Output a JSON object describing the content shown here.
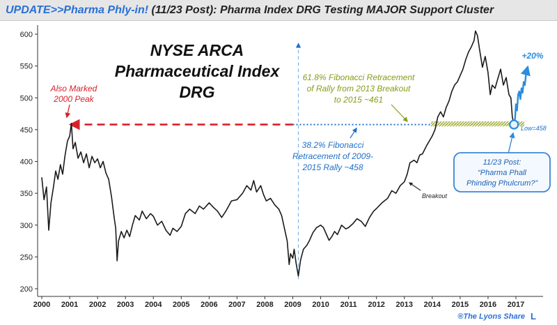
{
  "title_prefix": "UPDATE>>Pharma Phly-in!",
  "title_rest": " (11/23 Post): Pharma Index DRG Testing MAJOR Support Cluster",
  "credit": "®The Lyons Share",
  "credit_mark": "L",
  "colors": {
    "price": "#1a1a1a",
    "projection": "#2a8de0",
    "red_annotation": "#d8202a",
    "fib_618": "#8a9a18",
    "fib_382": "#1f6fc8",
    "title_blue": "#2a6fd6",
    "callout_border": "#3a86d8"
  },
  "chart_data": {
    "type": "line",
    "title": "NYSE ARCA Pharmaceutical Index DRG",
    "title_lines": [
      "NYSE ARCA",
      "Pharmaceutical Index",
      "DRG"
    ],
    "xlabel": "",
    "ylabel": "",
    "xlim": [
      2000,
      2017.5
    ],
    "ylim": [
      200,
      610
    ],
    "grid": false,
    "legend": "none",
    "x_ticks": [
      2000,
      2001,
      2002,
      2003,
      2004,
      2005,
      2006,
      2007,
      2008,
      2009,
      2010,
      2011,
      2012,
      2013,
      2014,
      2015,
      2016,
      2017
    ],
    "y_ticks": [
      200,
      250,
      300,
      350,
      400,
      450,
      500,
      550,
      600
    ],
    "series": [
      {
        "style": "price",
        "points": [
          [
            2000.0,
            375
          ],
          [
            2000.08,
            340
          ],
          [
            2000.17,
            360
          ],
          [
            2000.25,
            292
          ],
          [
            2000.33,
            335
          ],
          [
            2000.42,
            360
          ],
          [
            2000.5,
            385
          ],
          [
            2000.58,
            372
          ],
          [
            2000.67,
            395
          ],
          [
            2000.75,
            380
          ],
          [
            2000.83,
            408
          ],
          [
            2000.92,
            432
          ],
          [
            2001.0,
            440
          ],
          [
            2001.06,
            460
          ],
          [
            2001.12,
            420
          ],
          [
            2001.2,
            430
          ],
          [
            2001.3,
            405
          ],
          [
            2001.4,
            415
          ],
          [
            2001.5,
            398
          ],
          [
            2001.6,
            412
          ],
          [
            2001.7,
            390
          ],
          [
            2001.8,
            408
          ],
          [
            2001.9,
            398
          ],
          [
            2002.0,
            404
          ],
          [
            2002.1,
            390
          ],
          [
            2002.2,
            400
          ],
          [
            2002.3,
            382
          ],
          [
            2002.4,
            372
          ],
          [
            2002.5,
            345
          ],
          [
            2002.6,
            310
          ],
          [
            2002.65,
            295
          ],
          [
            2002.7,
            244
          ],
          [
            2002.75,
            275
          ],
          [
            2002.85,
            290
          ],
          [
            2002.95,
            280
          ],
          [
            2003.05,
            292
          ],
          [
            2003.15,
            282
          ],
          [
            2003.25,
            300
          ],
          [
            2003.35,
            315
          ],
          [
            2003.5,
            308
          ],
          [
            2003.6,
            322
          ],
          [
            2003.75,
            310
          ],
          [
            2003.9,
            318
          ],
          [
            2004.0,
            314
          ],
          [
            2004.15,
            300
          ],
          [
            2004.3,
            306
          ],
          [
            2004.45,
            292
          ],
          [
            2004.6,
            284
          ],
          [
            2004.7,
            295
          ],
          [
            2004.85,
            290
          ],
          [
            2005.0,
            298
          ],
          [
            2005.15,
            318
          ],
          [
            2005.3,
            325
          ],
          [
            2005.5,
            318
          ],
          [
            2005.65,
            330
          ],
          [
            2005.8,
            325
          ],
          [
            2006.0,
            335
          ],
          [
            2006.15,
            328
          ],
          [
            2006.3,
            322
          ],
          [
            2006.45,
            312
          ],
          [
            2006.6,
            322
          ],
          [
            2006.8,
            338
          ],
          [
            2007.0,
            340
          ],
          [
            2007.2,
            350
          ],
          [
            2007.35,
            362
          ],
          [
            2007.5,
            355
          ],
          [
            2007.6,
            370
          ],
          [
            2007.7,
            352
          ],
          [
            2007.85,
            362
          ],
          [
            2007.95,
            348
          ],
          [
            2008.05,
            338
          ],
          [
            2008.2,
            342
          ],
          [
            2008.35,
            332
          ],
          [
            2008.5,
            325
          ],
          [
            2008.6,
            315
          ],
          [
            2008.7,
            295
          ],
          [
            2008.8,
            275
          ],
          [
            2008.87,
            238
          ],
          [
            2008.92,
            255
          ],
          [
            2009.0,
            248
          ],
          [
            2009.05,
            262
          ],
          [
            2009.12,
            240
          ],
          [
            2009.2,
            220
          ],
          [
            2009.28,
            245
          ],
          [
            2009.38,
            262
          ],
          [
            2009.5,
            268
          ],
          [
            2009.6,
            276
          ],
          [
            2009.72,
            288
          ],
          [
            2009.85,
            296
          ],
          [
            2010.0,
            300
          ],
          [
            2010.1,
            296
          ],
          [
            2010.2,
            286
          ],
          [
            2010.3,
            276
          ],
          [
            2010.4,
            282
          ],
          [
            2010.5,
            290
          ],
          [
            2010.6,
            285
          ],
          [
            2010.75,
            300
          ],
          [
            2010.9,
            294
          ],
          [
            2011.0,
            296
          ],
          [
            2011.15,
            302
          ],
          [
            2011.3,
            310
          ],
          [
            2011.45,
            306
          ],
          [
            2011.6,
            298
          ],
          [
            2011.75,
            312
          ],
          [
            2011.9,
            322
          ],
          [
            2012.0,
            326
          ],
          [
            2012.2,
            335
          ],
          [
            2012.4,
            342
          ],
          [
            2012.55,
            354
          ],
          [
            2012.7,
            350
          ],
          [
            2012.85,
            362
          ],
          [
            2013.0,
            368
          ],
          [
            2013.1,
            380
          ],
          [
            2013.2,
            398
          ],
          [
            2013.35,
            402
          ],
          [
            2013.45,
            398
          ],
          [
            2013.55,
            410
          ],
          [
            2013.65,
            412
          ],
          [
            2013.8,
            425
          ],
          [
            2014.0,
            440
          ],
          [
            2014.1,
            450
          ],
          [
            2014.2,
            470
          ],
          [
            2014.3,
            478
          ],
          [
            2014.4,
            470
          ],
          [
            2014.5,
            485
          ],
          [
            2014.6,
            495
          ],
          [
            2014.7,
            510
          ],
          [
            2014.8,
            520
          ],
          [
            2014.9,
            525
          ],
          [
            2015.0,
            535
          ],
          [
            2015.1,
            545
          ],
          [
            2015.2,
            560
          ],
          [
            2015.3,
            572
          ],
          [
            2015.4,
            580
          ],
          [
            2015.5,
            590
          ],
          [
            2015.55,
            605
          ],
          [
            2015.62,
            598
          ],
          [
            2015.7,
            575
          ],
          [
            2015.8,
            548
          ],
          [
            2015.9,
            565
          ],
          [
            2016.0,
            540
          ],
          [
            2016.08,
            505
          ],
          [
            2016.15,
            520
          ],
          [
            2016.25,
            515
          ],
          [
            2016.35,
            530
          ],
          [
            2016.45,
            545
          ],
          [
            2016.55,
            520
          ],
          [
            2016.65,
            532
          ],
          [
            2016.75,
            505
          ],
          [
            2016.82,
            500
          ],
          [
            2016.87,
            470
          ],
          [
            2016.93,
            458
          ]
        ]
      },
      {
        "style": "projection",
        "points": [
          [
            2016.93,
            458
          ],
          [
            2016.97,
            468
          ],
          [
            2017.0,
            490
          ],
          [
            2017.04,
            480
          ],
          [
            2017.08,
            505
          ],
          [
            2017.12,
            510
          ],
          [
            2017.16,
            498
          ],
          [
            2017.2,
            515
          ],
          [
            2017.24,
            508
          ],
          [
            2017.28,
            525
          ],
          [
            2017.32,
            520
          ],
          [
            2017.37,
            540
          ],
          [
            2017.42,
            548
          ]
        ]
      }
    ],
    "levels": [
      {
        "kind": "red_dashed",
        "value": 458,
        "from": 2001.05,
        "to": 2009.0
      },
      {
        "kind": "blue_dotted",
        "value": 458,
        "from": 2009.0,
        "to": 2016.93
      },
      {
        "kind": "olive_hatched",
        "value": 459,
        "from": 2013.95,
        "to": 2017.3
      }
    ],
    "vertical_marker": {
      "x": 2009.2,
      "from": 215,
      "to": 585
    },
    "low_marker": {
      "x": 2016.93,
      "y": 458
    },
    "annotations": {
      "peak_2000": {
        "lines": [
          "Also Marked",
          "2000 Peak"
        ]
      },
      "fib_618": {
        "lines": [
          "61.8% Fibonacci Retracement",
          "of Rally from 2013 Breakout",
          "to 2015 ~461"
        ]
      },
      "fib_382": {
        "lines": [
          "38.2% Fibonacci",
          "Retracement of 2009-",
          "2015 Rally ~458"
        ]
      },
      "breakout": "Breakout",
      "low": "Low=458",
      "gain": "+20%",
      "callout": {
        "lines": [
          "11/23 Post:",
          "“Pharma Phall",
          "Phinding Phulcrum?”"
        ]
      }
    }
  }
}
